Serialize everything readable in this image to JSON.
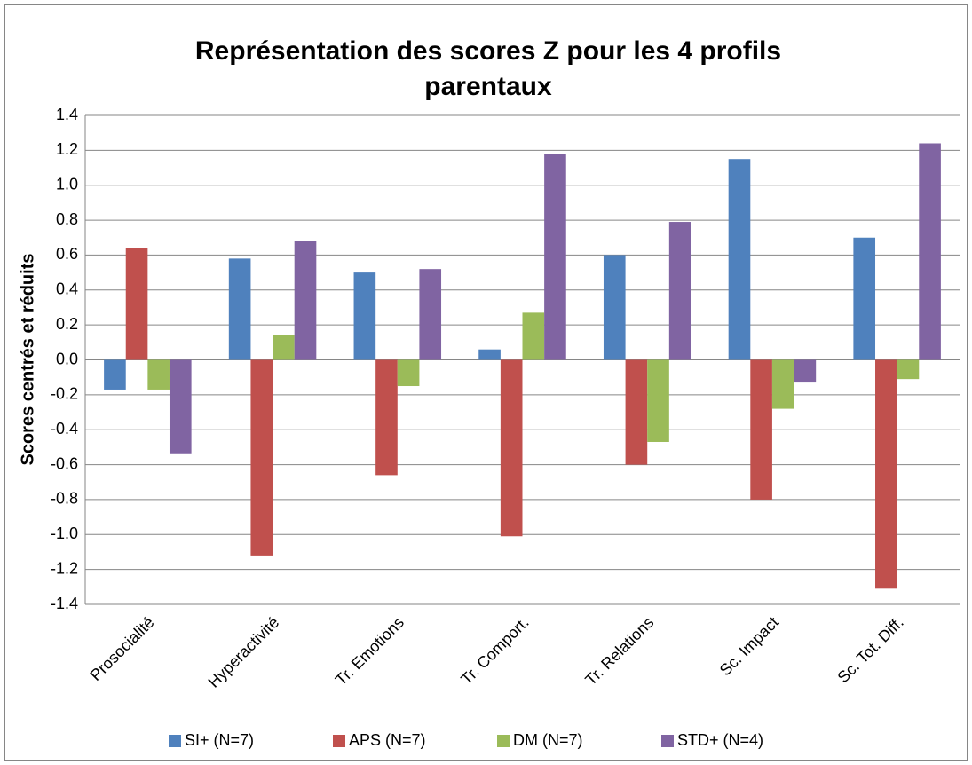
{
  "chart_data": {
    "type": "bar",
    "title": "Représentation des scores Z pour les 4 profils parentaux",
    "y_label": "Scores centrés et réduits",
    "categories": [
      "Prosocialité",
      "Hyperactivité",
      "Tr. Emotions",
      "Tr. Comport.",
      "Tr. Relations",
      "Sc. Impact",
      "Sc. Tot. Diff."
    ],
    "series": [
      {
        "name": "SI+ (N=7)",
        "color": "#4f81bd",
        "values": [
          -0.17,
          0.58,
          0.5,
          0.06,
          0.6,
          1.15,
          0.7
        ]
      },
      {
        "name": "APS (N=7)",
        "color": "#c0504d",
        "values": [
          0.64,
          -1.12,
          -0.66,
          -1.01,
          -0.6,
          -0.8,
          -1.31
        ]
      },
      {
        "name": "DM (N=7)",
        "color": "#9bbb59",
        "values": [
          -0.17,
          0.14,
          -0.15,
          0.27,
          -0.47,
          -0.28,
          -0.11
        ]
      },
      {
        "name": "STD+ (N=4)",
        "color": "#8064a2",
        "values": [
          -0.54,
          0.68,
          0.52,
          1.18,
          0.79,
          -0.13,
          1.24
        ]
      }
    ],
    "ylim": [
      -1.4,
      1.4
    ],
    "yticks": [
      1.4,
      1.2,
      {
        "value": 1,
        "label": "1.0"
      },
      0.8,
      0.6,
      0.4,
      0.2,
      {
        "value": 0,
        "label": "0.0"
      },
      -0.2,
      -0.4,
      -0.6,
      -0.8,
      {
        "value": -1,
        "label": "-1.0"
      },
      -1.2,
      -1.4
    ],
    "grid": true,
    "legend": "bottom"
  }
}
